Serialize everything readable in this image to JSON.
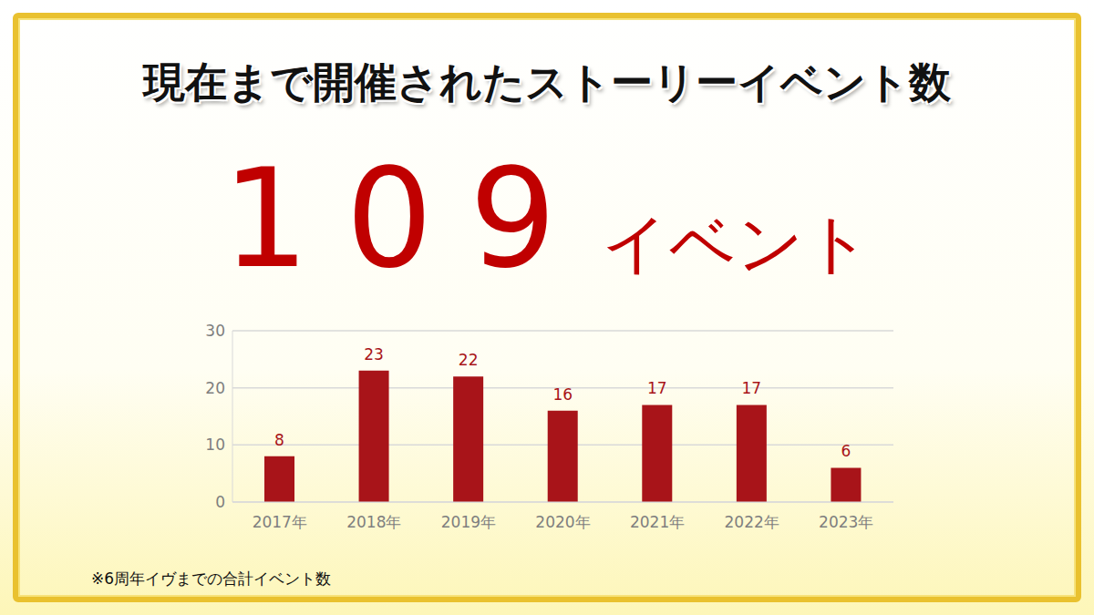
{
  "title": "現在まで開催されたストーリーイベント数",
  "headline": {
    "value": 109,
    "unit": "イベント"
  },
  "footnote": "※6周年イヴまでの合計イベント数",
  "chart_data": {
    "type": "bar",
    "categories": [
      "2017年",
      "2018年",
      "2019年",
      "2020年",
      "2021年",
      "2022年",
      "2023年"
    ],
    "values": [
      8,
      23,
      22,
      16,
      17,
      17,
      6
    ],
    "color": "#a81419",
    "ylim": [
      0,
      30
    ],
    "yticks": [
      0,
      10,
      20,
      30
    ],
    "grid": true,
    "data_labels": true
  }
}
